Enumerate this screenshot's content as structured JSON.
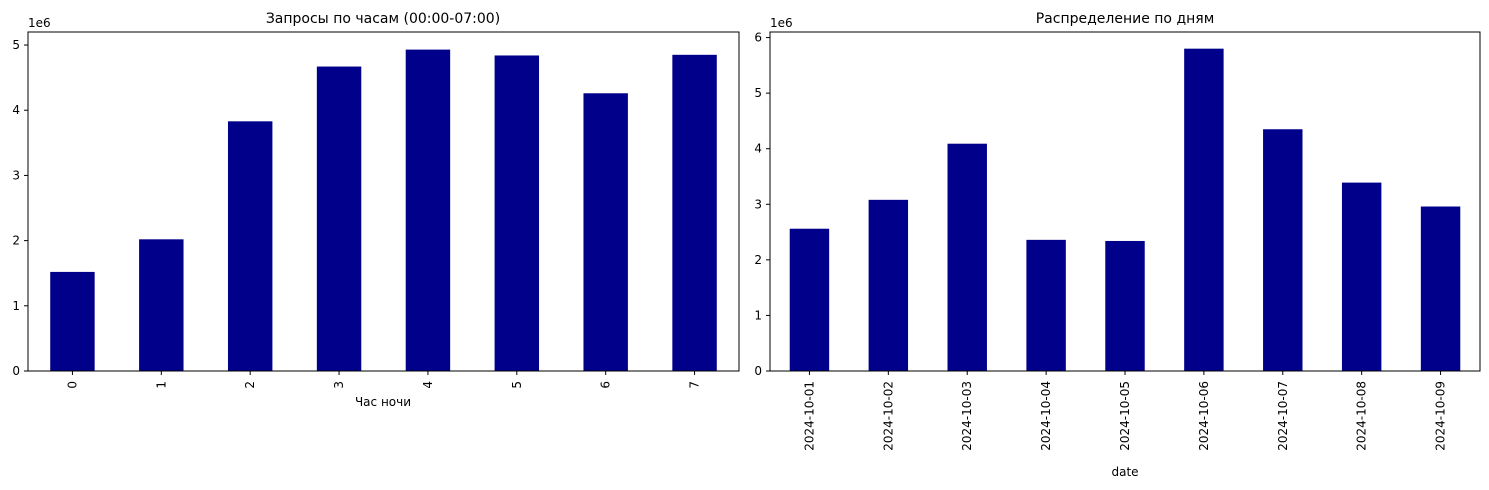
{
  "chart_data": [
    {
      "type": "bar",
      "title": "Запросы по часам (00:00-07:00)",
      "xlabel": "Час ночи",
      "ylabel": "",
      "y_multiplier_label": "1e6",
      "categories": [
        "0",
        "1",
        "2",
        "3",
        "4",
        "5",
        "6",
        "7"
      ],
      "values": [
        1520000,
        2020000,
        3830000,
        4670000,
        4930000,
        4840000,
        4260000,
        4850000
      ],
      "ylim": [
        0,
        5200000
      ],
      "yticks": [
        "0",
        "1",
        "2",
        "3",
        "4",
        "5"
      ],
      "bar_color": "#00008b",
      "grid": false,
      "x_tick_rotation": "vertical"
    },
    {
      "type": "bar",
      "title": "Распределение по дням",
      "xlabel": "date",
      "ylabel": "",
      "y_multiplier_label": "1e6",
      "categories": [
        "2024-10-01",
        "2024-10-02",
        "2024-10-03",
        "2024-10-04",
        "2024-10-05",
        "2024-10-06",
        "2024-10-07",
        "2024-10-08",
        "2024-10-09"
      ],
      "values": [
        2560000,
        3080000,
        4090000,
        2360000,
        2340000,
        5800000,
        4350000,
        3390000,
        2960000
      ],
      "ylim": [
        0,
        6100000
      ],
      "yticks": [
        "0",
        "1",
        "2",
        "3",
        "4",
        "5",
        "6"
      ],
      "bar_color": "#00008b",
      "grid": false,
      "x_tick_rotation": "vertical"
    }
  ]
}
